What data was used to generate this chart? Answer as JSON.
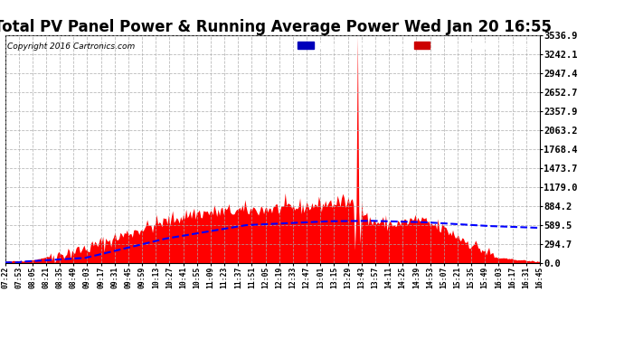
{
  "title": "Total PV Panel Power & Running Average Power Wed Jan 20 16:55",
  "copyright": "Copyright 2016 Cartronics.com",
  "yticks": [
    0.0,
    294.7,
    589.5,
    884.2,
    1179.0,
    1473.7,
    1768.4,
    2063.2,
    2357.9,
    2652.7,
    2947.4,
    3242.1,
    3536.9
  ],
  "ymax": 3536.9,
  "ymin": 0.0,
  "bg_color": "#ffffff",
  "plot_bg": "#ffffff",
  "grid_color": "#aaaaaa",
  "pv_color": "#ff0000",
  "avg_color": "#0000ff",
  "title_fontsize": 12,
  "xtick_labels": [
    "07:22",
    "07:53",
    "08:05",
    "08:21",
    "08:35",
    "08:49",
    "09:03",
    "09:17",
    "09:31",
    "09:45",
    "09:59",
    "10:13",
    "10:27",
    "10:41",
    "10:55",
    "11:09",
    "11:23",
    "11:37",
    "11:51",
    "12:05",
    "12:19",
    "12:33",
    "12:47",
    "13:01",
    "13:15",
    "13:29",
    "13:43",
    "13:57",
    "14:11",
    "14:25",
    "14:39",
    "14:53",
    "15:07",
    "15:21",
    "15:35",
    "15:49",
    "16:03",
    "16:17",
    "16:31",
    "16:45"
  ]
}
